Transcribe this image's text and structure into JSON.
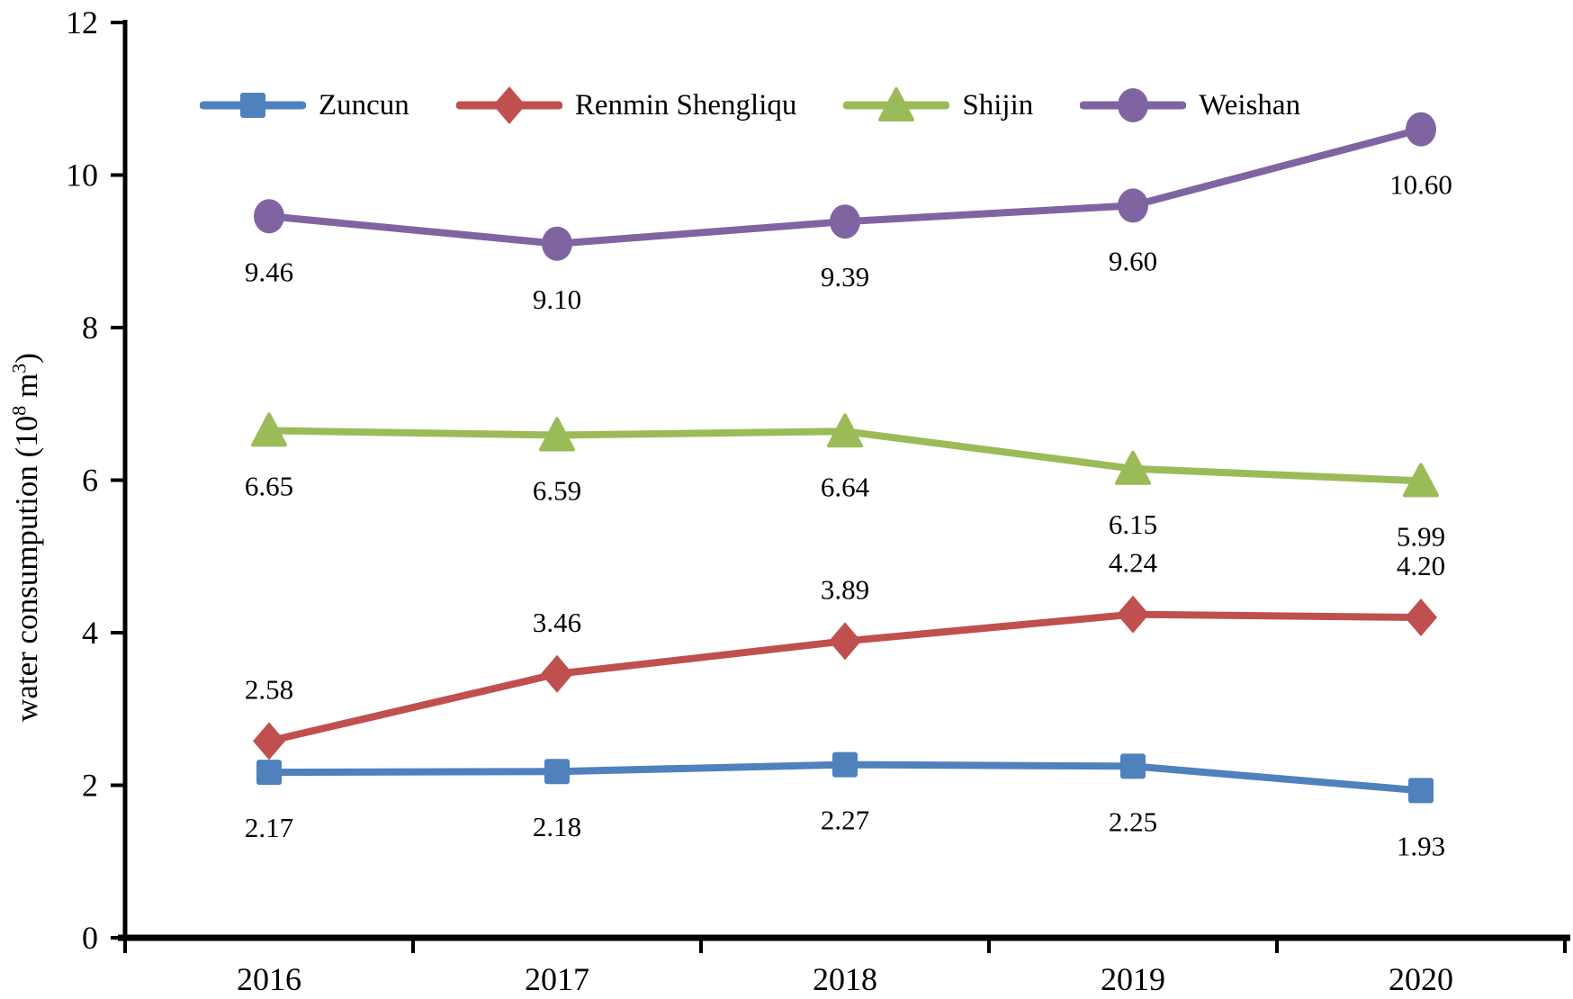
{
  "chart_data": {
    "type": "line",
    "title": "",
    "categories": [
      "2016",
      "2017",
      "2018",
      "2019",
      "2020"
    ],
    "series": [
      {
        "name": "Zuncun",
        "color": "#4F81BD",
        "marker": "square",
        "values": [
          2.17,
          2.18,
          2.27,
          2.25,
          1.93
        ],
        "label_position": "below"
      },
      {
        "name": "Renmin Shengliqu",
        "color": "#C0504D",
        "marker": "diamond",
        "values": [
          2.58,
          3.46,
          3.89,
          4.24,
          4.2
        ],
        "label_position": "above"
      },
      {
        "name": "Shijin",
        "color": "#9BBB59",
        "marker": "triangle",
        "values": [
          6.65,
          6.59,
          6.64,
          6.15,
          5.99
        ],
        "label_position": "below"
      },
      {
        "name": "Weishan",
        "color": "#8064A2",
        "marker": "circle",
        "values": [
          9.46,
          9.1,
          9.39,
          9.6,
          10.6
        ],
        "label_position": "below"
      }
    ],
    "ylabel": "water consumpution (10⁸ m³)",
    "ylabel_parts": {
      "prefix": "water consumpution (10",
      "sup1": "8",
      "mid": " m",
      "sup2": "3",
      "suffix": ")"
    },
    "xlabel": "",
    "y_ticks": [
      "0",
      "2",
      "4",
      "6",
      "8",
      "10",
      "12"
    ],
    "ylim": [
      0,
      12
    ],
    "grid": false,
    "data_labels": true,
    "label_decimals": 2,
    "legend_position": "top",
    "axis_color": "#000000",
    "text_color": "#000000",
    "background": "#FFFFFF"
  }
}
